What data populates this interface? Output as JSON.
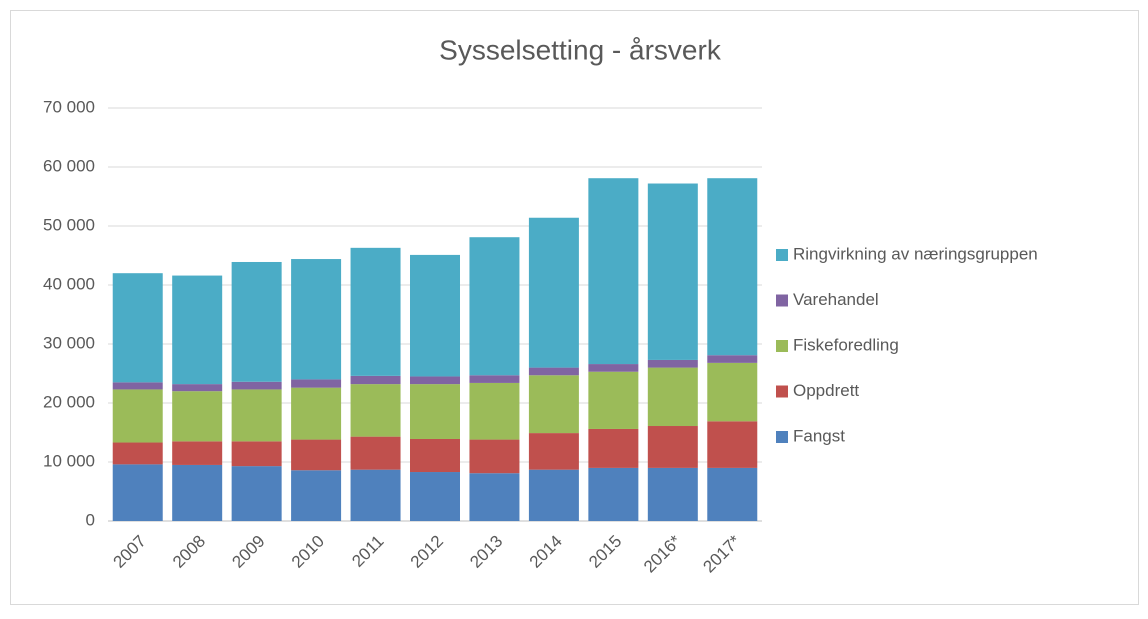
{
  "chart_data": {
    "type": "stacked_bar",
    "title": "Sysselsetting - årsverk",
    "categories": [
      "2007",
      "2008",
      "2009",
      "2010",
      "2011",
      "2012",
      "2013",
      "2014",
      "2015",
      "2016*",
      "2017*"
    ],
    "series": [
      {
        "name": "Fangst",
        "color": "#4f81bd",
        "values": [
          9600,
          9500,
          9300,
          8600,
          8700,
          8300,
          8100,
          8700,
          9000,
          9000,
          9000
        ]
      },
      {
        "name": "Oppdrett",
        "color": "#c0504d",
        "values": [
          3700,
          4000,
          4200,
          5200,
          5600,
          5600,
          5700,
          6200,
          6600,
          7100,
          7900
        ]
      },
      {
        "name": "Fiskeforedling",
        "color": "#9bbb59",
        "values": [
          9000,
          8500,
          8800,
          8800,
          8900,
          9300,
          9600,
          9800,
          9700,
          9900,
          9900
        ]
      },
      {
        "name": "Varehandel",
        "color": "#8064a2",
        "values": [
          1200,
          1200,
          1300,
          1400,
          1400,
          1300,
          1300,
          1300,
          1300,
          1300,
          1300
        ]
      },
      {
        "name": "Ringvirkning av næringsgruppen",
        "color": "#4bacc6",
        "values": [
          18500,
          18400,
          20300,
          20400,
          21700,
          20600,
          23400,
          25400,
          31500,
          29900,
          30000
        ]
      }
    ],
    "ylim": [
      0,
      70000
    ],
    "yticks": [
      0,
      {
        "value": 10000,
        "label": "10 000"
      },
      {
        "value": 20000,
        "label": "20 000"
      },
      {
        "value": 30000,
        "label": "30 000"
      },
      {
        "value": 40000,
        "label": "40 000"
      },
      {
        "value": 50000,
        "label": "50 000"
      },
      {
        "value": 60000,
        "label": "60 000"
      },
      {
        "value": 70000,
        "label": "70 000"
      }
    ],
    "grid": true,
    "legend": "right"
  }
}
